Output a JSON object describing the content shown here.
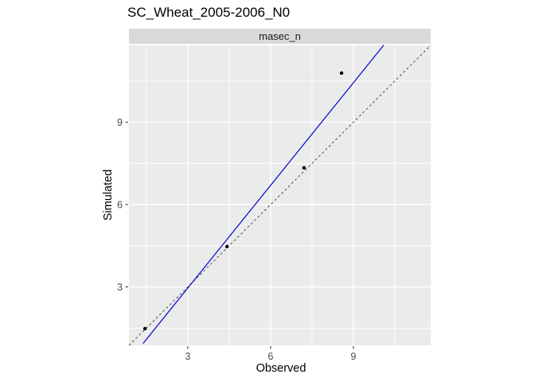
{
  "title": "SC_Wheat_2005-2006_N0",
  "chart_data": {
    "type": "scatter",
    "title": "SC_Wheat_2005-2006_N0",
    "facet_label": "masec_n",
    "xlabel": "Observed",
    "ylabel": "Simulated",
    "xlim": [
      0.87,
      11.8
    ],
    "ylim": [
      0.87,
      11.8
    ],
    "x_ticks": [
      3,
      6,
      9
    ],
    "y_ticks": [
      3,
      6,
      9
    ],
    "x_minor_ticks": [
      1.5,
      4.5,
      7.5,
      10.5
    ],
    "y_minor_ticks": [
      1.5,
      4.5,
      7.5,
      10.5
    ],
    "grid": true,
    "legend": "none",
    "points": [
      {
        "observed": 1.45,
        "simulated": 1.48
      },
      {
        "observed": 4.42,
        "simulated": 4.47
      },
      {
        "observed": 7.21,
        "simulated": 7.34
      },
      {
        "observed": 8.57,
        "simulated": 10.79
      }
    ],
    "identity_line": {
      "description": "y = x",
      "style": "dashed",
      "from": 0.87,
      "to": 11.8
    },
    "regression_line": {
      "style": "solid",
      "slope": 1.246,
      "intercept": -0.77,
      "x1": 1.38,
      "y1": 0.94,
      "x2": 10.1,
      "y2": 11.81
    },
    "colors": {
      "panel_bg": "#ebebeb",
      "strip_bg": "#d9d9d9",
      "grid": "#ffffff",
      "point": "#000000",
      "regression": "#0000dd",
      "identity": "#4d4d4d",
      "tick_mark": "#333333",
      "tick_label": "#4d4d4d",
      "strip_text": "#1a1a1a",
      "title_text": "#000000"
    }
  }
}
